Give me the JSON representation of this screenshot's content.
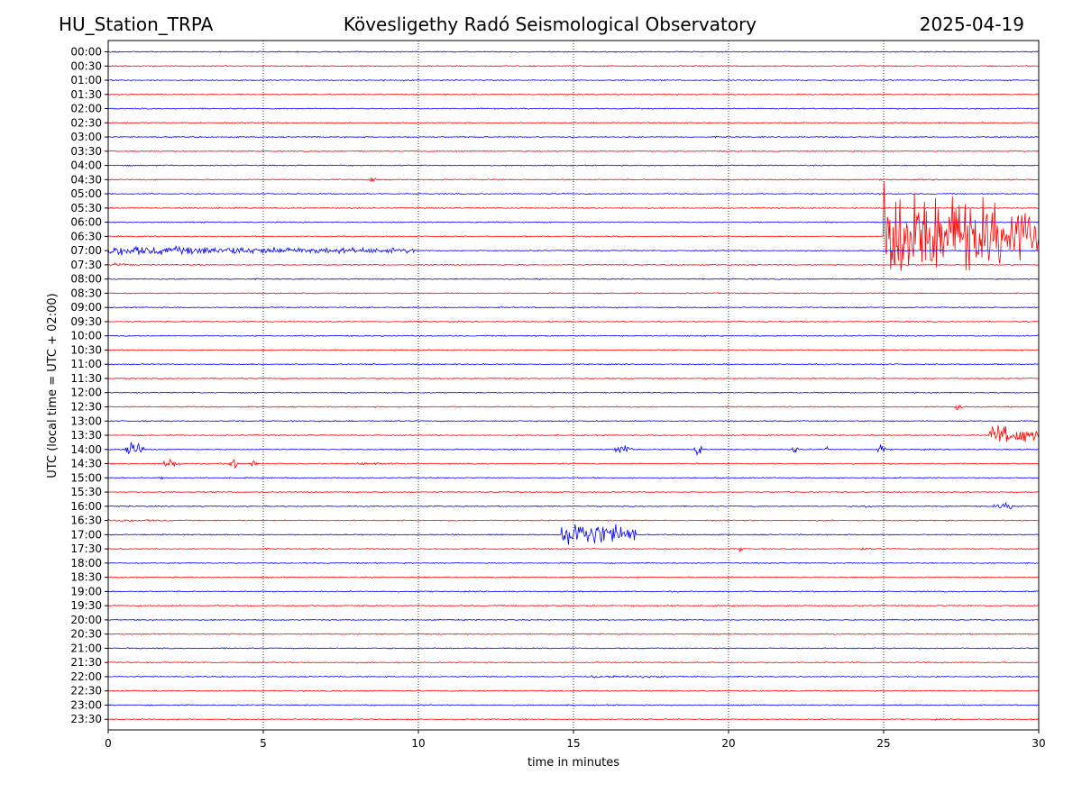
{
  "header": {
    "station": "HU_Station_TRPA",
    "observatory": "Kövesligethy Radó Seismological Observatory",
    "date": "2025-04-19"
  },
  "colors": {
    "even_trace": "#0000ff",
    "odd_trace": "#ff0000",
    "grid": "#000000"
  },
  "chart_data": {
    "type": "helicorder",
    "xlabel": "time in minutes",
    "ylabel": "UTC (local time = UTC + 02:00)",
    "xlim": [
      0,
      30
    ],
    "xticks": [
      0,
      5,
      10,
      15,
      20,
      25,
      30
    ],
    "vertical_grid_dotted_at": [
      5,
      10,
      15,
      20,
      25
    ],
    "row_labels": [
      "00:00",
      "00:30",
      "01:00",
      "01:30",
      "02:00",
      "02:30",
      "03:00",
      "03:30",
      "04:00",
      "04:30",
      "05:00",
      "05:30",
      "06:00",
      "06:30",
      "07:00",
      "07:30",
      "08:00",
      "08:30",
      "09:00",
      "09:30",
      "10:00",
      "10:30",
      "11:00",
      "11:30",
      "12:00",
      "12:30",
      "13:00",
      "13:30",
      "14:00",
      "14:30",
      "15:00",
      "15:30",
      "16:00",
      "16:30",
      "17:00",
      "17:30",
      "18:00",
      "18:30",
      "19:00",
      "19:30",
      "20:00",
      "20:30",
      "21:00",
      "21:30",
      "22:00",
      "22:30",
      "23:00",
      "23:30"
    ],
    "color_cycle": [
      "blue",
      "red"
    ],
    "noise_amplitude_rows": 0.06,
    "events": [
      {
        "row": "04:30",
        "t_start": 8.3,
        "t_end": 8.9,
        "amp_rows": 0.25
      },
      {
        "row": "06:30",
        "t_start": 25.0,
        "t_end": 30.0,
        "amp_rows": 5.5
      },
      {
        "row": "07:00",
        "t_start": 0.0,
        "t_end": 10.0,
        "amp_rows": 0.5
      },
      {
        "row": "07:30",
        "t_start": 0.0,
        "t_end": 1.0,
        "amp_rows": 0.2
      },
      {
        "row": "12:30",
        "t_start": 27.3,
        "t_end": 27.6,
        "amp_rows": 0.6
      },
      {
        "row": "13:30",
        "t_start": 28.4,
        "t_end": 30.0,
        "amp_rows": 1.2
      },
      {
        "row": "14:00",
        "t_start": 0.5,
        "t_end": 1.3,
        "amp_rows": 0.9
      },
      {
        "row": "14:00",
        "t_start": 16.3,
        "t_end": 17.0,
        "amp_rows": 0.6
      },
      {
        "row": "14:00",
        "t_start": 18.9,
        "t_end": 19.2,
        "amp_rows": 1.2
      },
      {
        "row": "14:00",
        "t_start": 22.0,
        "t_end": 22.3,
        "amp_rows": 0.5
      },
      {
        "row": "14:00",
        "t_start": 23.1,
        "t_end": 23.3,
        "amp_rows": 0.4
      },
      {
        "row": "14:00",
        "t_start": 24.8,
        "t_end": 25.1,
        "amp_rows": 0.7
      },
      {
        "row": "14:30",
        "t_start": 1.8,
        "t_end": 2.4,
        "amp_rows": 0.7
      },
      {
        "row": "14:30",
        "t_start": 3.9,
        "t_end": 4.2,
        "amp_rows": 1.0
      },
      {
        "row": "14:30",
        "t_start": 4.6,
        "t_end": 4.9,
        "amp_rows": 0.6
      },
      {
        "row": "14:30",
        "t_start": 8.0,
        "t_end": 10.0,
        "amp_rows": 0.15
      },
      {
        "row": "15:00",
        "t_start": 1.6,
        "t_end": 1.8,
        "amp_rows": 0.25
      },
      {
        "row": "16:00",
        "t_start": 24.0,
        "t_end": 25.0,
        "amp_rows": 0.15
      },
      {
        "row": "16:00",
        "t_start": 28.5,
        "t_end": 29.7,
        "amp_rows": 0.35
      },
      {
        "row": "16:30",
        "t_start": 0.0,
        "t_end": 2.0,
        "amp_rows": 0.15
      },
      {
        "row": "17:00",
        "t_start": 14.6,
        "t_end": 17.0,
        "amp_rows": 1.6
      },
      {
        "row": "17:30",
        "t_start": 20.3,
        "t_end": 20.5,
        "amp_rows": 0.3
      },
      {
        "row": "17:30",
        "t_start": 24.2,
        "t_end": 24.6,
        "amp_rows": 0.2
      },
      {
        "row": "22:00",
        "t_start": 15.5,
        "t_end": 19.0,
        "amp_rows": 0.15
      }
    ]
  }
}
